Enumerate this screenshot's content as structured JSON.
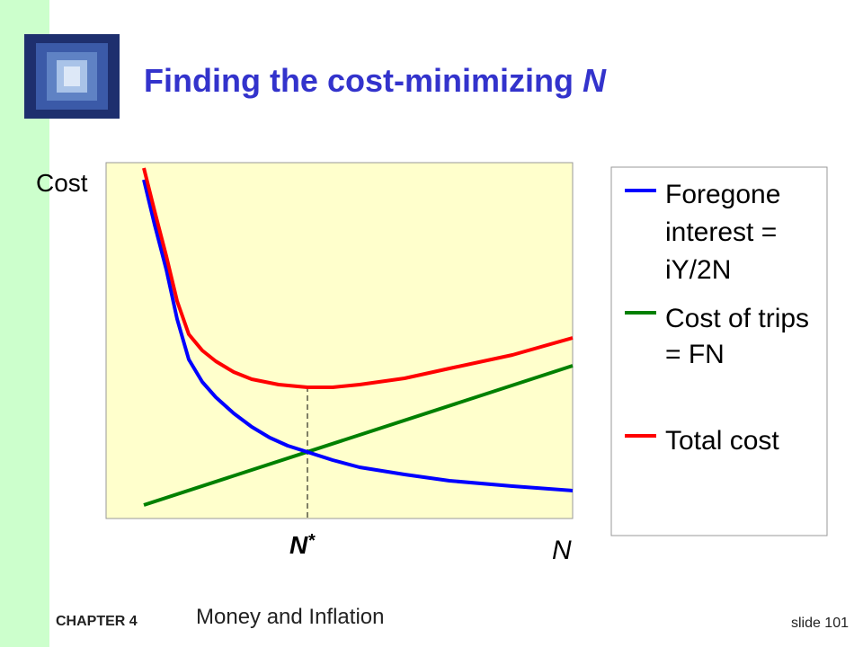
{
  "header": {
    "title": "Finding the cost-minimizing",
    "title_variable": "N"
  },
  "chart": {
    "y_label": "Cost",
    "x_label": "N",
    "marker_label": "N",
    "marker_superscript": "*"
  },
  "legend": {
    "items": [
      {
        "lines": [
          "Foregone",
          "interest =",
          "iY/2N"
        ]
      },
      {
        "lines": [
          "Cost of trips",
          "= FN"
        ]
      },
      {
        "lines": [
          "Total cost"
        ]
      }
    ]
  },
  "footer": {
    "chapter": "CHAPTER 4",
    "subject": "Money and Inflation",
    "slide": "slide 101"
  }
}
